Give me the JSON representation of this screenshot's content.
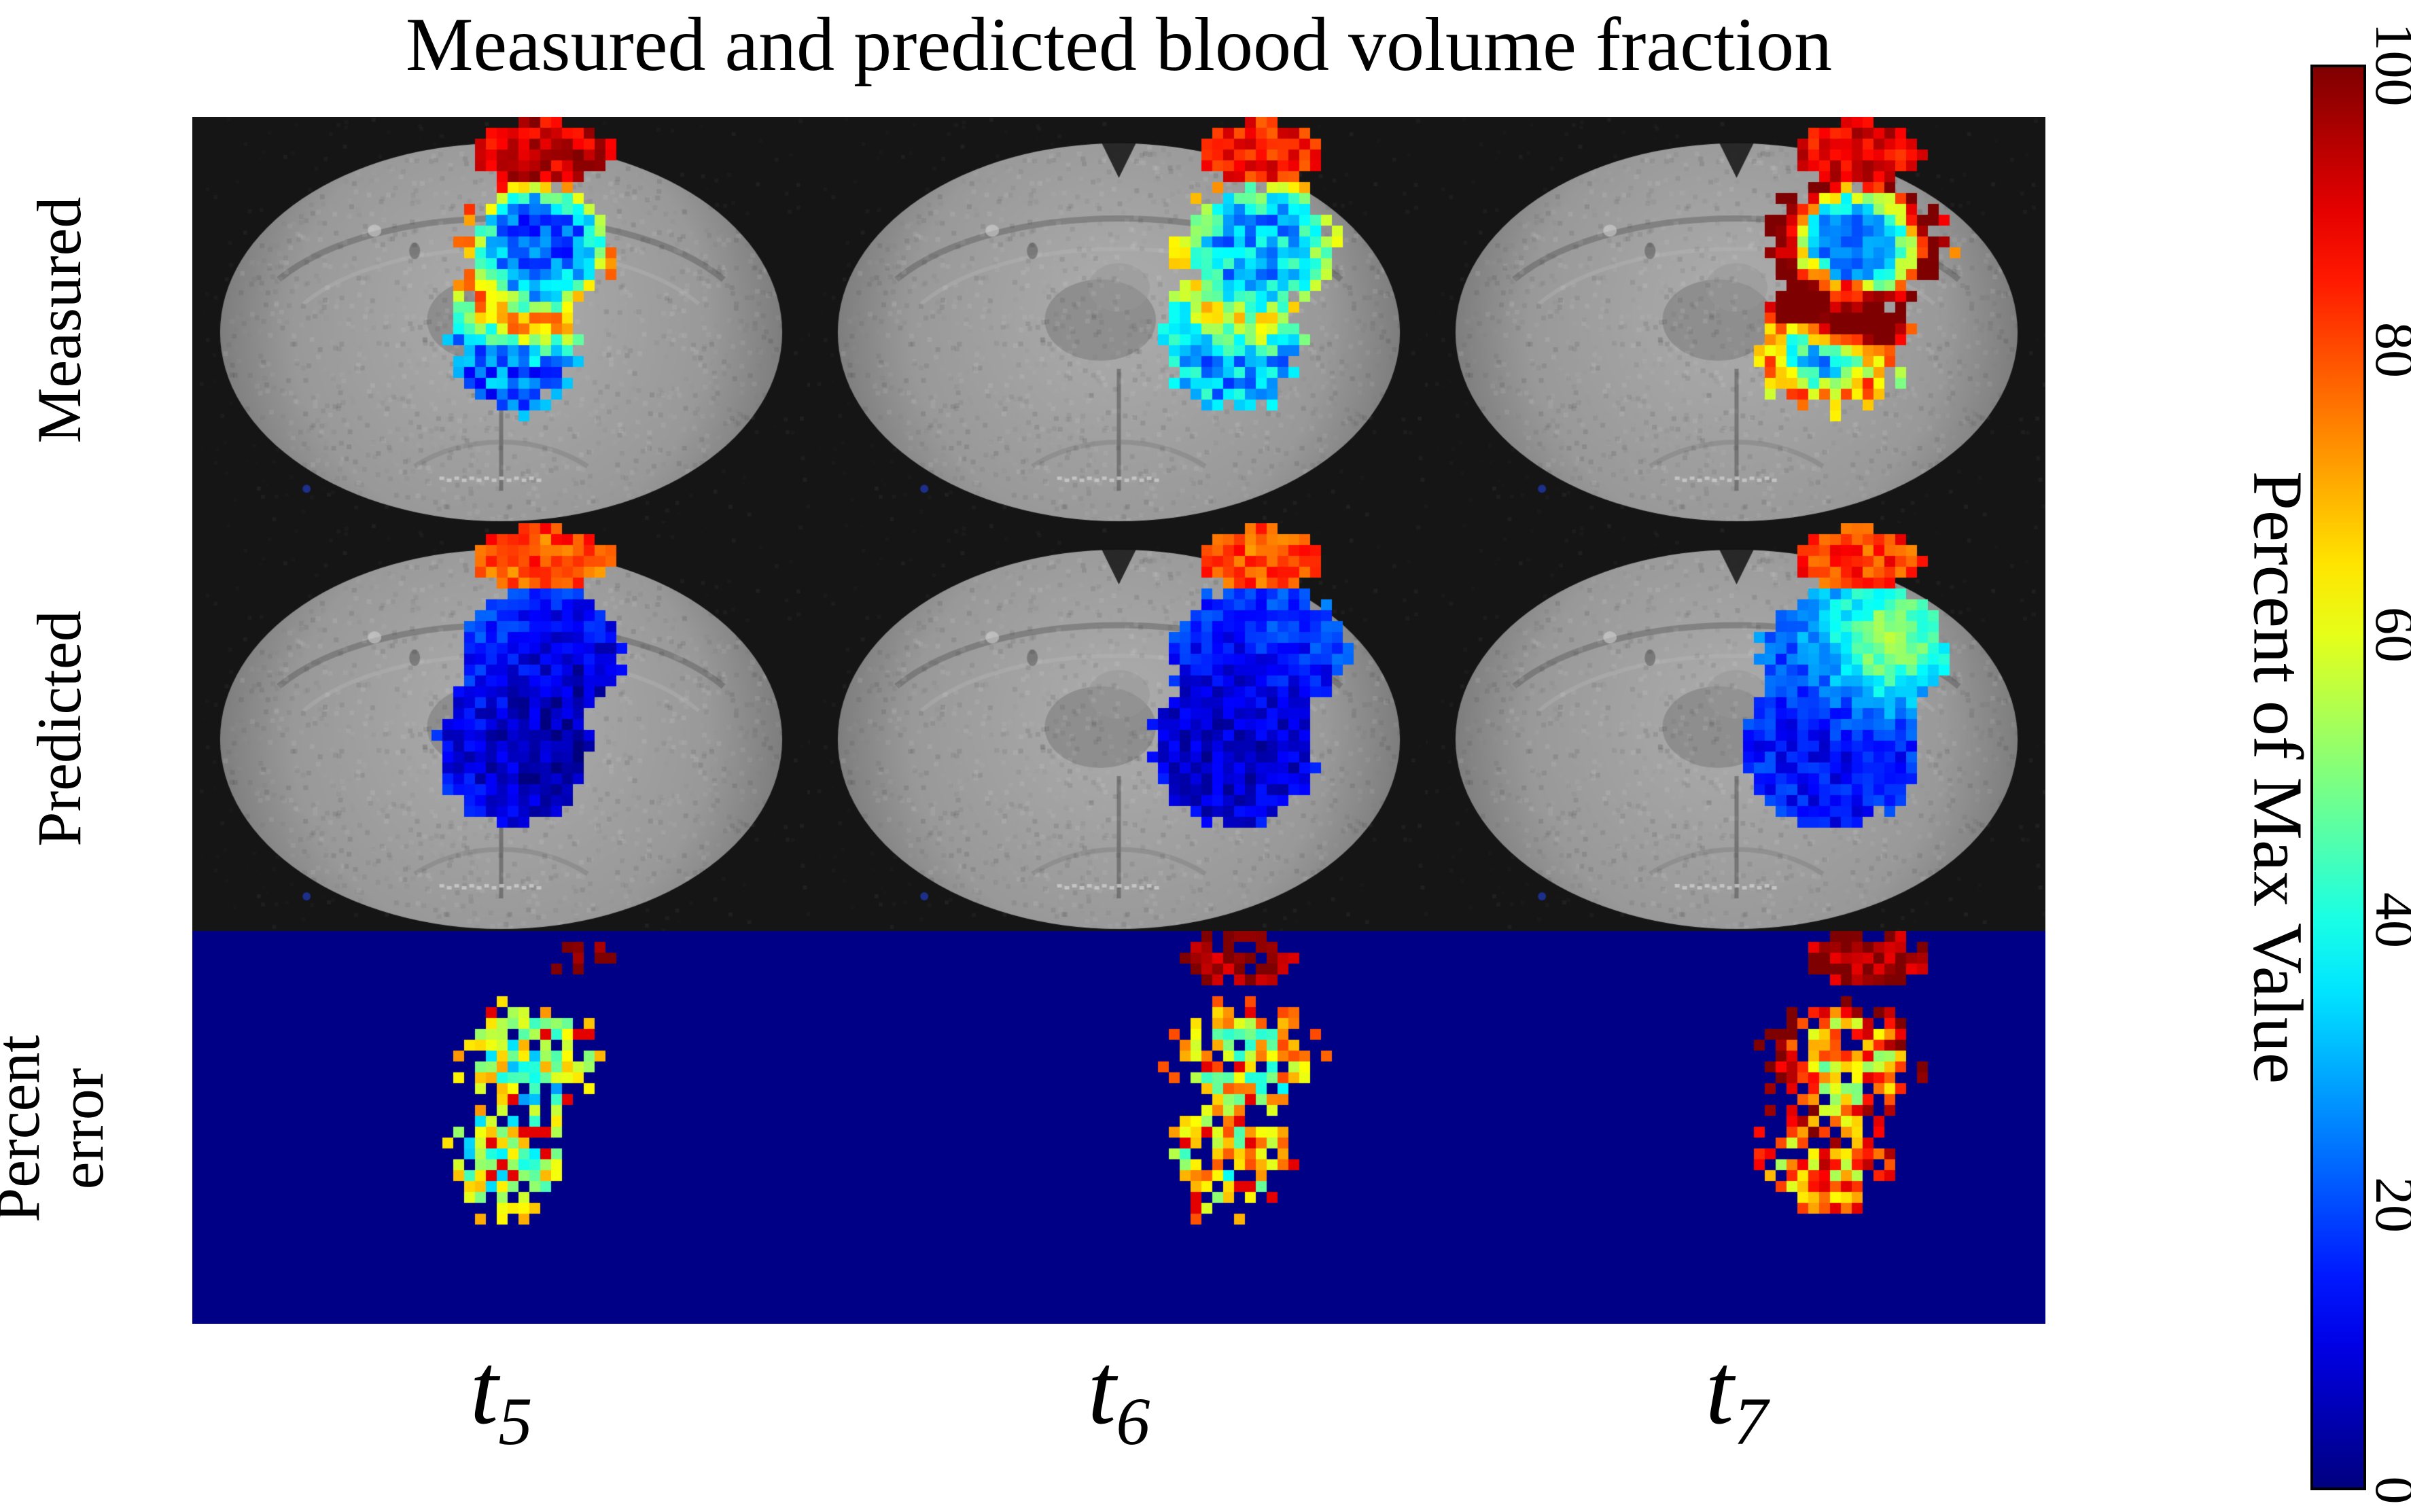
{
  "figure": {
    "title": "Measured and predicted blood volume fraction",
    "row_labels": {
      "measured": "Measured",
      "predicted": "Predicted",
      "percent_error": "Percent\nerror"
    },
    "column_labels": [
      {
        "base": "t",
        "sub": "5"
      },
      {
        "base": "t",
        "sub": "6"
      },
      {
        "base": "t",
        "sub": "7"
      }
    ],
    "colorbar": {
      "label": "Percent of Max Value",
      "ticks_top_down": [
        "100",
        "80",
        "60",
        "40",
        "20",
        "0"
      ]
    }
  },
  "chart_data": {
    "type": "heatmap",
    "title": "Measured and predicted blood volume fraction",
    "rows": [
      "Measured",
      "Predicted",
      "Percent error"
    ],
    "columns": [
      "t5",
      "t6",
      "t7"
    ],
    "colorbar": {
      "label": "Percent of Max Value",
      "range": [
        0,
        100
      ],
      "ticks": [
        0,
        20,
        40,
        60,
        80,
        100
      ],
      "colormap": "jet",
      "orientation": "vertical",
      "position": "right"
    },
    "colors": {
      "figure_background": "#FFFFFF",
      "panel_background": "#151515",
      "error_row_background": "#000087",
      "colormap_low": "#00008F",
      "colormap_high": "#800000"
    },
    "panels": [
      {
        "row": "Measured",
        "column": "t5",
        "content": "grayscale brain slice; blue overlay blob with yellow-orange rim, red-orange at blob top, dark red strip at brain top edge"
      },
      {
        "row": "Measured",
        "column": "t6",
        "content": "grayscale brain slice; cyan-blue overlay blob with green-yellow upper arc and red patch at top edge"
      },
      {
        "row": "Measured",
        "column": "t7",
        "content": "grayscale brain slice; cyan overlay blob with strong red-orange ring, blue core, second yellow ring below, dark red at top edge"
      },
      {
        "row": "Predicted",
        "column": "t5",
        "content": "grayscale brain slice; smooth mostly blue overlay blob, red-orange patch at top edge"
      },
      {
        "row": "Predicted",
        "column": "t6",
        "content": "grayscale brain slice; smooth blue-cyan overlay blob, red-orange patch at top edge"
      },
      {
        "row": "Predicted",
        "column": "t7",
        "content": "grayscale brain slice; smooth blue-cyan blob with green-yellow spot upper right, red-orange patch at top edge"
      },
      {
        "row": "Percent error",
        "column": "t5",
        "content": "dark blue background; sparse cyan-green-yellow speckled blob with a few red pixels"
      },
      {
        "row": "Percent error",
        "column": "t6",
        "content": "dark blue background; cyan-yellow-orange speckled blob with dark red patch at top"
      },
      {
        "row": "Percent error",
        "column": "t7",
        "content": "dark blue background; orange-dominant speckled blob with yellow ring and dark red patch at top"
      }
    ]
  }
}
